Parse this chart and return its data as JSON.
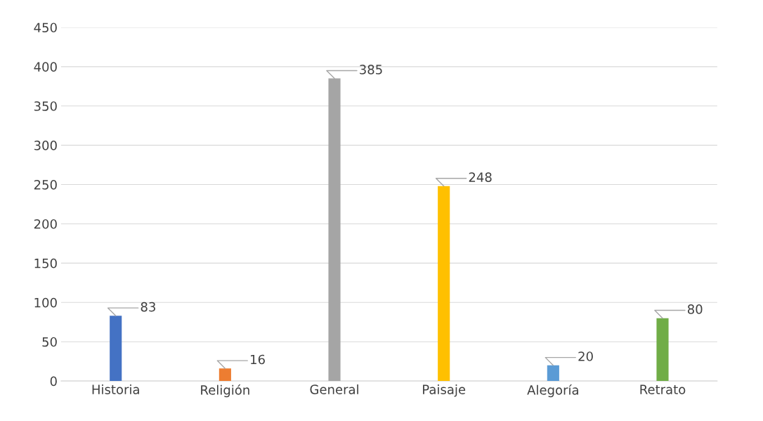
{
  "chart_data": {
    "type": "bar",
    "categories": [
      "Historia",
      "Religión",
      "General",
      "Paisaje",
      "Alegoría",
      "Retrato"
    ],
    "values": [
      83,
      16,
      385,
      248,
      20,
      80
    ],
    "colors": [
      "#4472c4",
      "#ed7d31",
      "#a5a5a5",
      "#ffc000",
      "#5b9bd5",
      "#70ad47"
    ],
    "ylim": [
      0,
      450
    ],
    "yticks": [
      0,
      50,
      100,
      150,
      200,
      250,
      300,
      350,
      400,
      450
    ],
    "grid": "y",
    "data_labels": true,
    "legend": false
  }
}
